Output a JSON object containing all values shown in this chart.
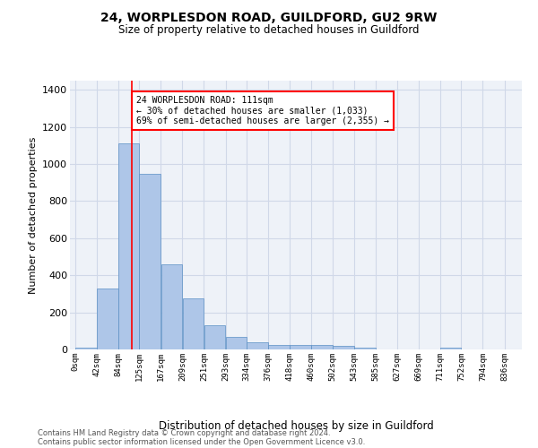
{
  "title1": "24, WORPLESDON ROAD, GUILDFORD, GU2 9RW",
  "title2": "Size of property relative to detached houses in Guildford",
  "xlabel": "Distribution of detached houses by size in Guildford",
  "ylabel": "Number of detached properties",
  "footer1": "Contains HM Land Registry data © Crown copyright and database right 2024.",
  "footer2": "Contains public sector information licensed under the Open Government Licence v3.0.",
  "bin_edges": [
    0,
    42,
    84,
    125,
    167,
    209,
    251,
    293,
    334,
    376,
    418,
    460,
    502,
    543,
    585,
    627,
    669,
    711,
    752,
    794,
    836
  ],
  "bar_heights": [
    10,
    330,
    1110,
    945,
    460,
    275,
    130,
    70,
    40,
    25,
    25,
    25,
    20,
    10,
    0,
    0,
    0,
    10,
    0,
    0
  ],
  "bar_color": "#aec6e8",
  "bar_edge_color": "#5a8fc4",
  "grid_color": "#d0d8e8",
  "background_color": "#eef2f8",
  "red_line_x": 111,
  "annotation_line1": "24 WORPLESDON ROAD: 111sqm",
  "annotation_line2": "← 30% of detached houses are smaller (1,033)",
  "annotation_line3": "69% of semi-detached houses are larger (2,355) →",
  "ylim": [
    0,
    1450
  ],
  "yticks": [
    0,
    200,
    400,
    600,
    800,
    1000,
    1200,
    1400
  ],
  "tick_labels": [
    "0sqm",
    "42sqm",
    "84sqm",
    "125sqm",
    "167sqm",
    "209sqm",
    "251sqm",
    "293sqm",
    "334sqm",
    "376sqm",
    "418sqm",
    "460sqm",
    "502sqm",
    "543sqm",
    "585sqm",
    "627sqm",
    "669sqm",
    "711sqm",
    "752sqm",
    "794sqm",
    "836sqm"
  ]
}
